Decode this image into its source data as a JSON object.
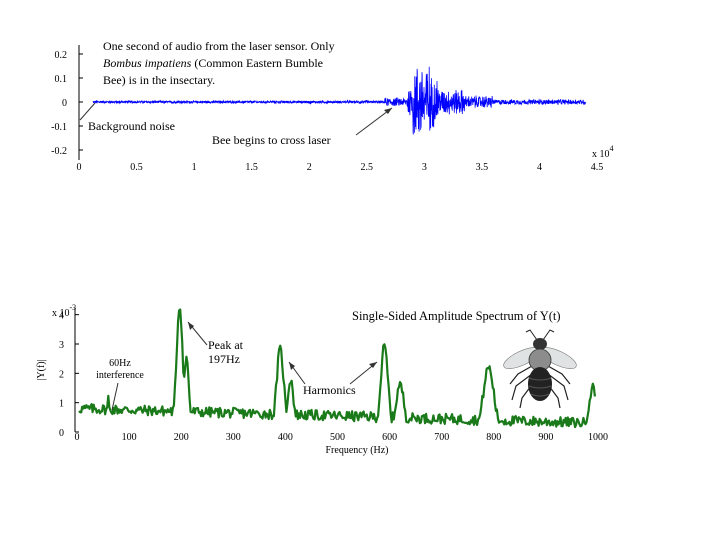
{
  "chart_data": [
    {
      "type": "line",
      "name_hint": "",
      "color": "#0000ff",
      "xlim": [
        0,
        45000
      ],
      "ylim": [
        -0.25,
        0.25
      ],
      "x_ticks": [
        {
          "value": 0,
          "label": "0"
        },
        {
          "value": 5000,
          "label": "0.5"
        },
        {
          "value": 10000,
          "label": "1"
        },
        {
          "value": 15000,
          "label": "1.5"
        },
        {
          "value": 20000,
          "label": "2"
        },
        {
          "value": 25000,
          "label": "2.5"
        },
        {
          "value": 30000,
          "label": "3"
        },
        {
          "value": 35000,
          "label": "3.5"
        },
        {
          "value": 40000,
          "label": "4"
        },
        {
          "value": 45000,
          "label": "4.5"
        }
      ],
      "x_multiplier": {
        "base": "x 10",
        "exp": "4"
      },
      "y_ticks": [
        {
          "value": 0.2,
          "label": "0.2"
        },
        {
          "value": 0.1,
          "label": "0.1"
        },
        {
          "value": 0,
          "label": "0"
        },
        {
          "value": -0.1,
          "label": "-0.1"
        },
        {
          "value": -0.2,
          "label": "-0.2"
        }
      ],
      "signal_segments": [
        {
          "x_start": 0,
          "x_end": 26500,
          "amplitude": 0.006
        },
        {
          "x_start": 26500,
          "x_end": 28500,
          "amplitude": 0.02
        },
        {
          "x_start": 28500,
          "x_end": 29000,
          "amplitude": 0.08
        },
        {
          "x_start": 29000,
          "x_end": 30500,
          "amplitude": 0.18
        },
        {
          "x_start": 30500,
          "x_end": 31200,
          "amplitude": 0.12
        },
        {
          "x_start": 31200,
          "x_end": 33500,
          "amplitude": 0.06
        },
        {
          "x_start": 33500,
          "x_end": 36000,
          "amplitude": 0.03
        },
        {
          "x_start": 36000,
          "x_end": 44000,
          "amplitude": 0.012
        }
      ],
      "annotations": {
        "title_line1": "One second of audio from the laser sensor. Only",
        "title_line2_italic": "Bombus impatiens",
        "title_line2_rest": " (Common Eastern Bumble",
        "title_line3": "Bee) is in the insectary.",
        "background_noise": "Background noise",
        "bee_begins": "Bee begins to cross laser"
      }
    },
    {
      "type": "line",
      "color": "#1a7a1a",
      "title": "Single-Sided Amplitude Spectrum of Y(t)",
      "xlabel": "Frequency (Hz)",
      "ylabel": "|Y(f)|",
      "xlim": [
        0,
        1000
      ],
      "ylim": [
        0,
        0.0045
      ],
      "x_ticks": [
        0,
        100,
        200,
        300,
        400,
        500,
        600,
        700,
        800,
        900,
        1000
      ],
      "y_ticks": [
        {
          "value": 0,
          "label": "0"
        },
        {
          "value": 0.001,
          "label": "1"
        },
        {
          "value": 0.002,
          "label": "2"
        },
        {
          "value": 0.003,
          "label": "3"
        },
        {
          "value": 0.004,
          "label": "4"
        }
      ],
      "y_multiplier": {
        "base": "x 10",
        "exp": "-3"
      },
      "baseline": 0.0005,
      "peaks": [
        {
          "freq": 60,
          "height": 0.0012,
          "width": 2
        },
        {
          "freq": 197,
          "height": 0.0043,
          "width": 6
        },
        {
          "freq": 210,
          "height": 0.0025,
          "width": 5
        },
        {
          "freq": 390,
          "height": 0.0028,
          "width": 7
        },
        {
          "freq": 410,
          "height": 0.0018,
          "width": 6
        },
        {
          "freq": 590,
          "height": 0.0029,
          "width": 7
        },
        {
          "freq": 620,
          "height": 0.0016,
          "width": 8
        },
        {
          "freq": 790,
          "height": 0.0022,
          "width": 10
        },
        {
          "freq": 990,
          "height": 0.0015,
          "width": 8
        }
      ],
      "annotations": {
        "interference": [
          "60Hz",
          "interference"
        ],
        "peak": [
          "Peak at",
          "197Hz"
        ],
        "harmonics": "Harmonics"
      }
    }
  ]
}
